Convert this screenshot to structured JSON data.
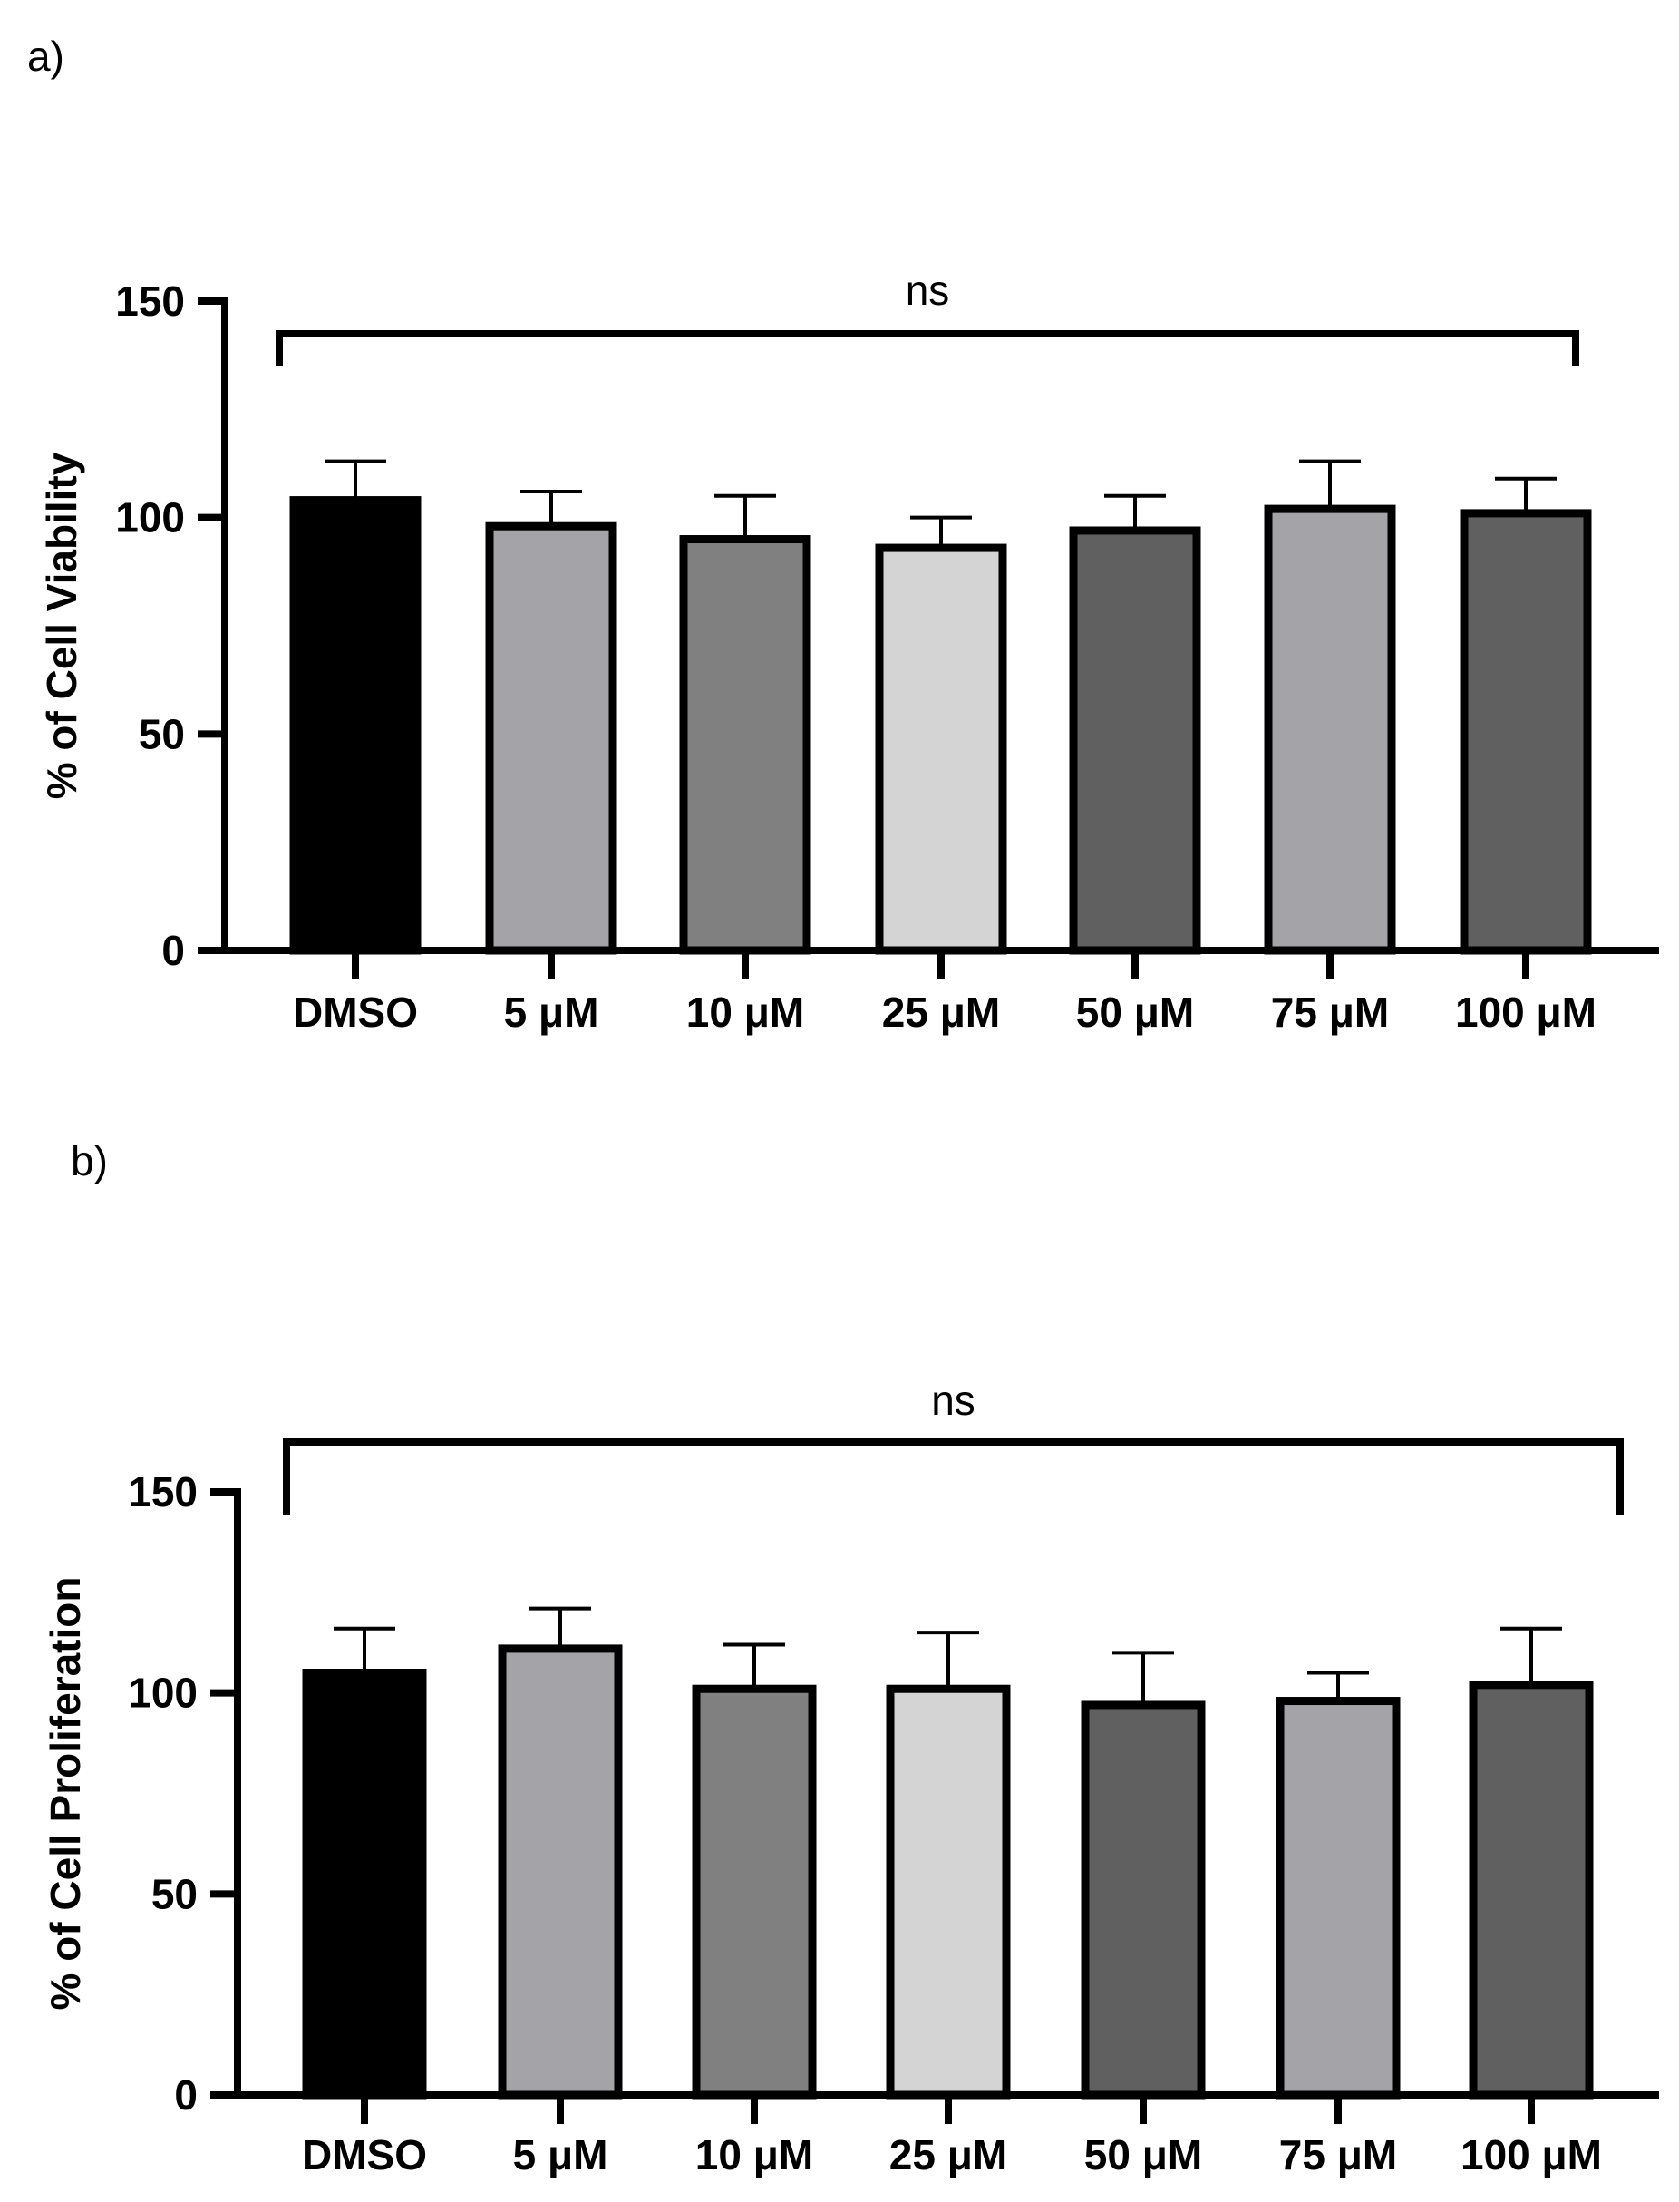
{
  "chart_data": [
    {
      "panel_label": "a)",
      "type": "bar",
      "categories": [
        "DMSO",
        "5 μM",
        "10 μM",
        "25 μM",
        "50 μM",
        "75 μM",
        "100 μM"
      ],
      "values": [
        104,
        98,
        95,
        93,
        97,
        102,
        101
      ],
      "errors": [
        9,
        8,
        10,
        7,
        8,
        11,
        8
      ],
      "colors": [
        "#000000",
        "#a3a3a8",
        "#808080",
        "#d4d4d4",
        "#606060",
        "#a3a3a8",
        "#606060"
      ],
      "ylabel": "% of Cell Viability",
      "xlabel": "",
      "ylim": [
        0,
        150
      ],
      "yticks": [
        0,
        50,
        100,
        150
      ],
      "significance": {
        "label": "ns",
        "from": "DMSO",
        "to": "100 μM"
      }
    },
    {
      "panel_label": "b)",
      "type": "bar",
      "categories": [
        "DMSO",
        "5 μM",
        "10 μM",
        "25 μM",
        "50 μM",
        "75 μM",
        "100 μM"
      ],
      "values": [
        105,
        111,
        101,
        101,
        97,
        98,
        102
      ],
      "errors": [
        11,
        10,
        11,
        14,
        13,
        7,
        14
      ],
      "colors": [
        "#000000",
        "#a3a3a8",
        "#808080",
        "#d4d4d4",
        "#606060",
        "#a3a3a8",
        "#606060"
      ],
      "ylabel": "% of Cell Proliferation",
      "xlabel": "",
      "ylim": [
        0,
        150
      ],
      "yticks": [
        0,
        50,
        100,
        150
      ],
      "significance": {
        "label": "ns",
        "from": "DMSO",
        "to": "100 μM"
      }
    }
  ]
}
